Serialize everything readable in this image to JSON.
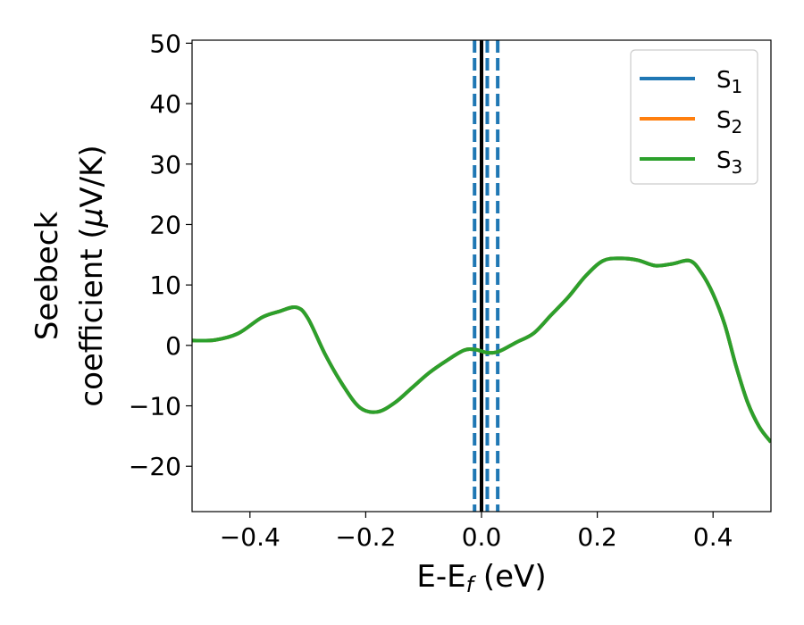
{
  "chart_data": {
    "type": "line",
    "xlabel": "E-E",
    "xlabel_sub": "f",
    "xlabel_unit": " (eV)",
    "ylabel_line1": "Seebeck",
    "ylabel_line2_prefix": "coefficient  (",
    "ylabel_line2_mu": "μ",
    "ylabel_line2_suffix": "V/K)",
    "xlim": [
      -0.5,
      0.5
    ],
    "ylim": [
      -27.5,
      50.5
    ],
    "xticks": [
      -0.4,
      -0.2,
      0.0,
      0.2,
      0.4
    ],
    "xtick_labels": [
      "−0.4",
      "−0.2",
      "0.0",
      "0.2",
      "0.4"
    ],
    "yticks": [
      -20,
      -10,
      0,
      10,
      20,
      30,
      40,
      50
    ],
    "ytick_labels": [
      "−20",
      "−10",
      "0",
      "10",
      "20",
      "30",
      "40",
      "50"
    ],
    "grid": false,
    "legend_position": "top-right",
    "vertical_lines": [
      {
        "x": 0.0,
        "style": "solid",
        "color": "#000000"
      },
      {
        "x": -0.012,
        "style": "dashed",
        "color": "#1f77b4"
      },
      {
        "x": 0.01,
        "style": "dashed",
        "color": "#1f77b4"
      },
      {
        "x": 0.028,
        "style": "dashed",
        "color": "#1f77b4"
      }
    ],
    "series": [
      {
        "name": "S",
        "sub": "1",
        "color": "#1f77b4"
      },
      {
        "name": "S",
        "sub": "2",
        "color": "#ff7f0e"
      },
      {
        "name": "S",
        "sub": "3",
        "color": "#2ca02c"
      }
    ],
    "x": [
      -0.5,
      -0.46,
      -0.42,
      -0.38,
      -0.35,
      -0.32,
      -0.3,
      -0.27,
      -0.24,
      -0.21,
      -0.18,
      -0.15,
      -0.12,
      -0.09,
      -0.06,
      -0.03,
      -0.01,
      0.01,
      0.03,
      0.06,
      0.09,
      0.12,
      0.15,
      0.18,
      0.21,
      0.24,
      0.27,
      0.3,
      0.33,
      0.36,
      0.38,
      0.4,
      0.42,
      0.44,
      0.46,
      0.48,
      0.5
    ],
    "y": [
      0.8,
      0.9,
      2.0,
      4.6,
      5.6,
      6.3,
      4.5,
      -1.5,
      -6.5,
      -10.3,
      -11.0,
      -9.5,
      -7.0,
      -4.5,
      -2.5,
      -0.8,
      -0.7,
      -1.2,
      -1.0,
      0.5,
      2.0,
      5.0,
      8.0,
      11.5,
      14.0,
      14.4,
      14.1,
      13.2,
      13.5,
      14.0,
      12.0,
      8.5,
      3.5,
      -3.5,
      -9.5,
      -13.5,
      -16.0
    ]
  }
}
